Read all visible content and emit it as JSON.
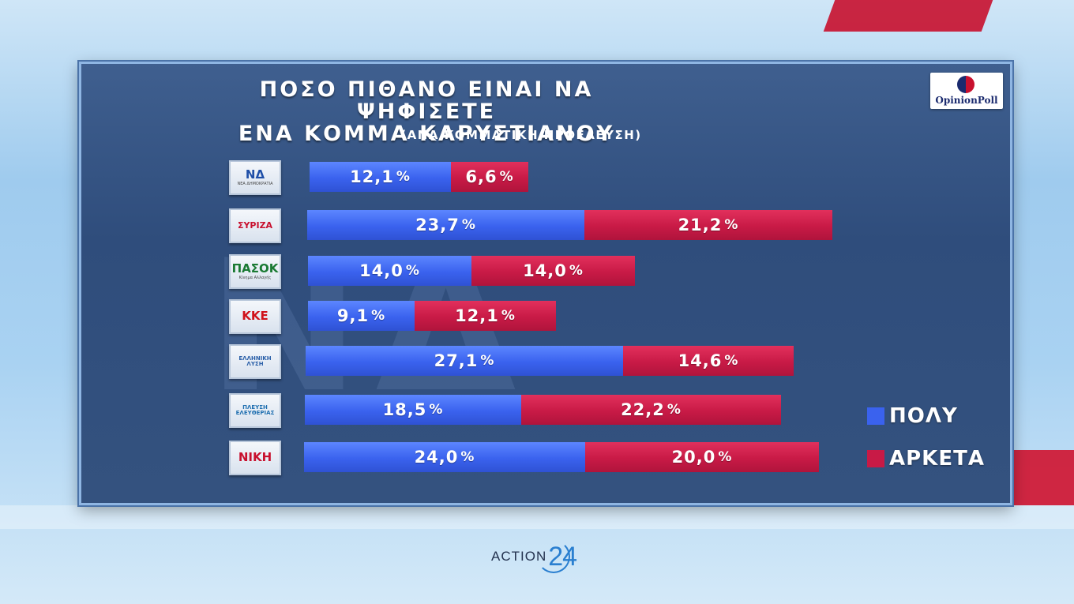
{
  "title_line1": "ΠΟΣΟ ΠΙΘΑΝΟ ΕΙΝΑΙ ΝΑ ΨΗΦΙΣΕΤΕ",
  "title_line2": "ΕΝΑ ΚΟΜΜΑ ΚΑΡΥΣΤΙΑΝΟΥ",
  "subtitle": "(ΑΝΑ ΚΟΜΜΑΤΙΚΗ ΠΡΟΕΛΕΥΣΗ)",
  "brand": "OpinionPoll",
  "channel": {
    "text": "ACTION",
    "number": "24"
  },
  "watermark": "ΝΔ",
  "party_logos": [
    {
      "id": "nd",
      "label": "ΝΔ",
      "sub": "ΝΕΑ ΔΗΜΟΚΡΑΤΙΑ",
      "color": "#1f4fa8"
    },
    {
      "id": "syriza",
      "label": "ΣΥΡΙΖΑ",
      "sub": "",
      "color": "#c8102e"
    },
    {
      "id": "pasok",
      "label": "ΠΑΣΟΚ",
      "sub": "Κίνημα Αλλαγής",
      "color": "#1b7a33"
    },
    {
      "id": "kke",
      "label": "ΚΚΕ",
      "sub": "",
      "color": "#d0121b"
    },
    {
      "id": "elliniki-lysi",
      "label": "ΕΛΛΗΝΙΚΗ ΛΥΣΗ",
      "sub": "",
      "color": "#2a5fa8"
    },
    {
      "id": "plefsi",
      "label": "ΠΛΕΥΣΗ ΕΛΕΥΘΕΡΙΑΣ",
      "sub": "",
      "color": "#1f6fb0"
    },
    {
      "id": "niki",
      "label": "ΝΙΚΗ",
      "sub": "",
      "color": "#c8102e"
    }
  ],
  "legend": [
    {
      "label": "ΠΟΛΥ",
      "color": "#3a62ee"
    },
    {
      "label": "ΑΡΚΕΤΑ",
      "color": "#c81a46"
    }
  ],
  "chart_data": {
    "type": "bar",
    "stacked": true,
    "orientation": "horizontal",
    "title": "ΠΟΣΟ ΠΙΘΑΝΟ ΕΙΝΑΙ ΝΑ ΨΗΦΙΣΕΤΕ ΕΝΑ ΚΟΜΜΑ ΚΑΡΥΣΤΙΑΝΟΥ",
    "subtitle": "(ΑΝΑ ΚΟΜΜΑΤΙΚΗ ΠΡΟΕΛΕΥΣΗ)",
    "categories": [
      "ΝΔ",
      "ΣΥΡΙΖΑ",
      "ΠΑΣΟΚ",
      "ΚΚΕ",
      "ΕΛΛΗΝΙΚΗ ΛΥΣΗ",
      "ΠΛΕΥΣΗ ΕΛΕΥΘΕΡΙΑΣ",
      "ΝΙΚΗ"
    ],
    "series": [
      {
        "name": "ΠΟΛΥ",
        "values": [
          12.1,
          23.7,
          14.0,
          9.1,
          27.1,
          18.5,
          24.0
        ],
        "labels": [
          "12,1",
          "23,7",
          "14,0",
          "9,1",
          "27,1",
          "18,5",
          "24,0"
        ]
      },
      {
        "name": "ΑΡΚΕΤΑ",
        "values": [
          6.6,
          21.2,
          14.0,
          12.1,
          14.6,
          22.2,
          20.0
        ],
        "labels": [
          "6,6",
          "21,2",
          "14,0",
          "12,1",
          "14,6",
          "22,2",
          "20,0"
        ]
      }
    ],
    "unit": "%",
    "legend_position": "right",
    "grid": false
  }
}
